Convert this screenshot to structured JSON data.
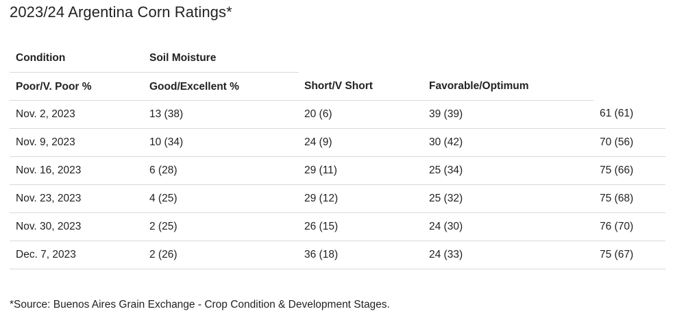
{
  "title": "2023/24 Argentina Corn Ratings*",
  "header_row1": {
    "condition": "Condition",
    "soil_moisture": "Soil Moisture"
  },
  "header_row2": {
    "poor": "Poor/V. Poor %",
    "good": "Good/Excellent %",
    "short": "Short/V Short",
    "favorable": "Favorable/Optimum"
  },
  "rows": [
    {
      "date": "Nov. 2, 2023",
      "c1": "13 (38)",
      "c2": "20 (6)",
      "c3": "39 (39)",
      "c4": "61 (61)"
    },
    {
      "date": "Nov. 9, 2023",
      "c1": "10 (34)",
      "c2": "24 (9)",
      "c3": "30 (42)",
      "c4": "70 (56)"
    },
    {
      "date": "Nov. 16, 2023",
      "c1": "6 (28)",
      "c2": "29 (11)",
      "c3": "25 (34)",
      "c4": "75 (66)"
    },
    {
      "date": "Nov. 23, 2023",
      "c1": "4 (25)",
      "c2": "29 (12)",
      "c3": "25 (32)",
      "c4": "75 (68)"
    },
    {
      "date": "Nov. 30, 2023",
      "c1": "2 (25)",
      "c2": "26 (15)",
      "c3": "24 (30)",
      "c4": "76 (70)"
    },
    {
      "date": "Dec. 7, 2023",
      "c1": "2 (26)",
      "c2": "36 (18)",
      "c3": "24 (33)",
      "c4": "75 (67)"
    }
  ],
  "footnote": "*Source: Buenos Aires Grain Exchange - Crop Condition & Development Stages."
}
